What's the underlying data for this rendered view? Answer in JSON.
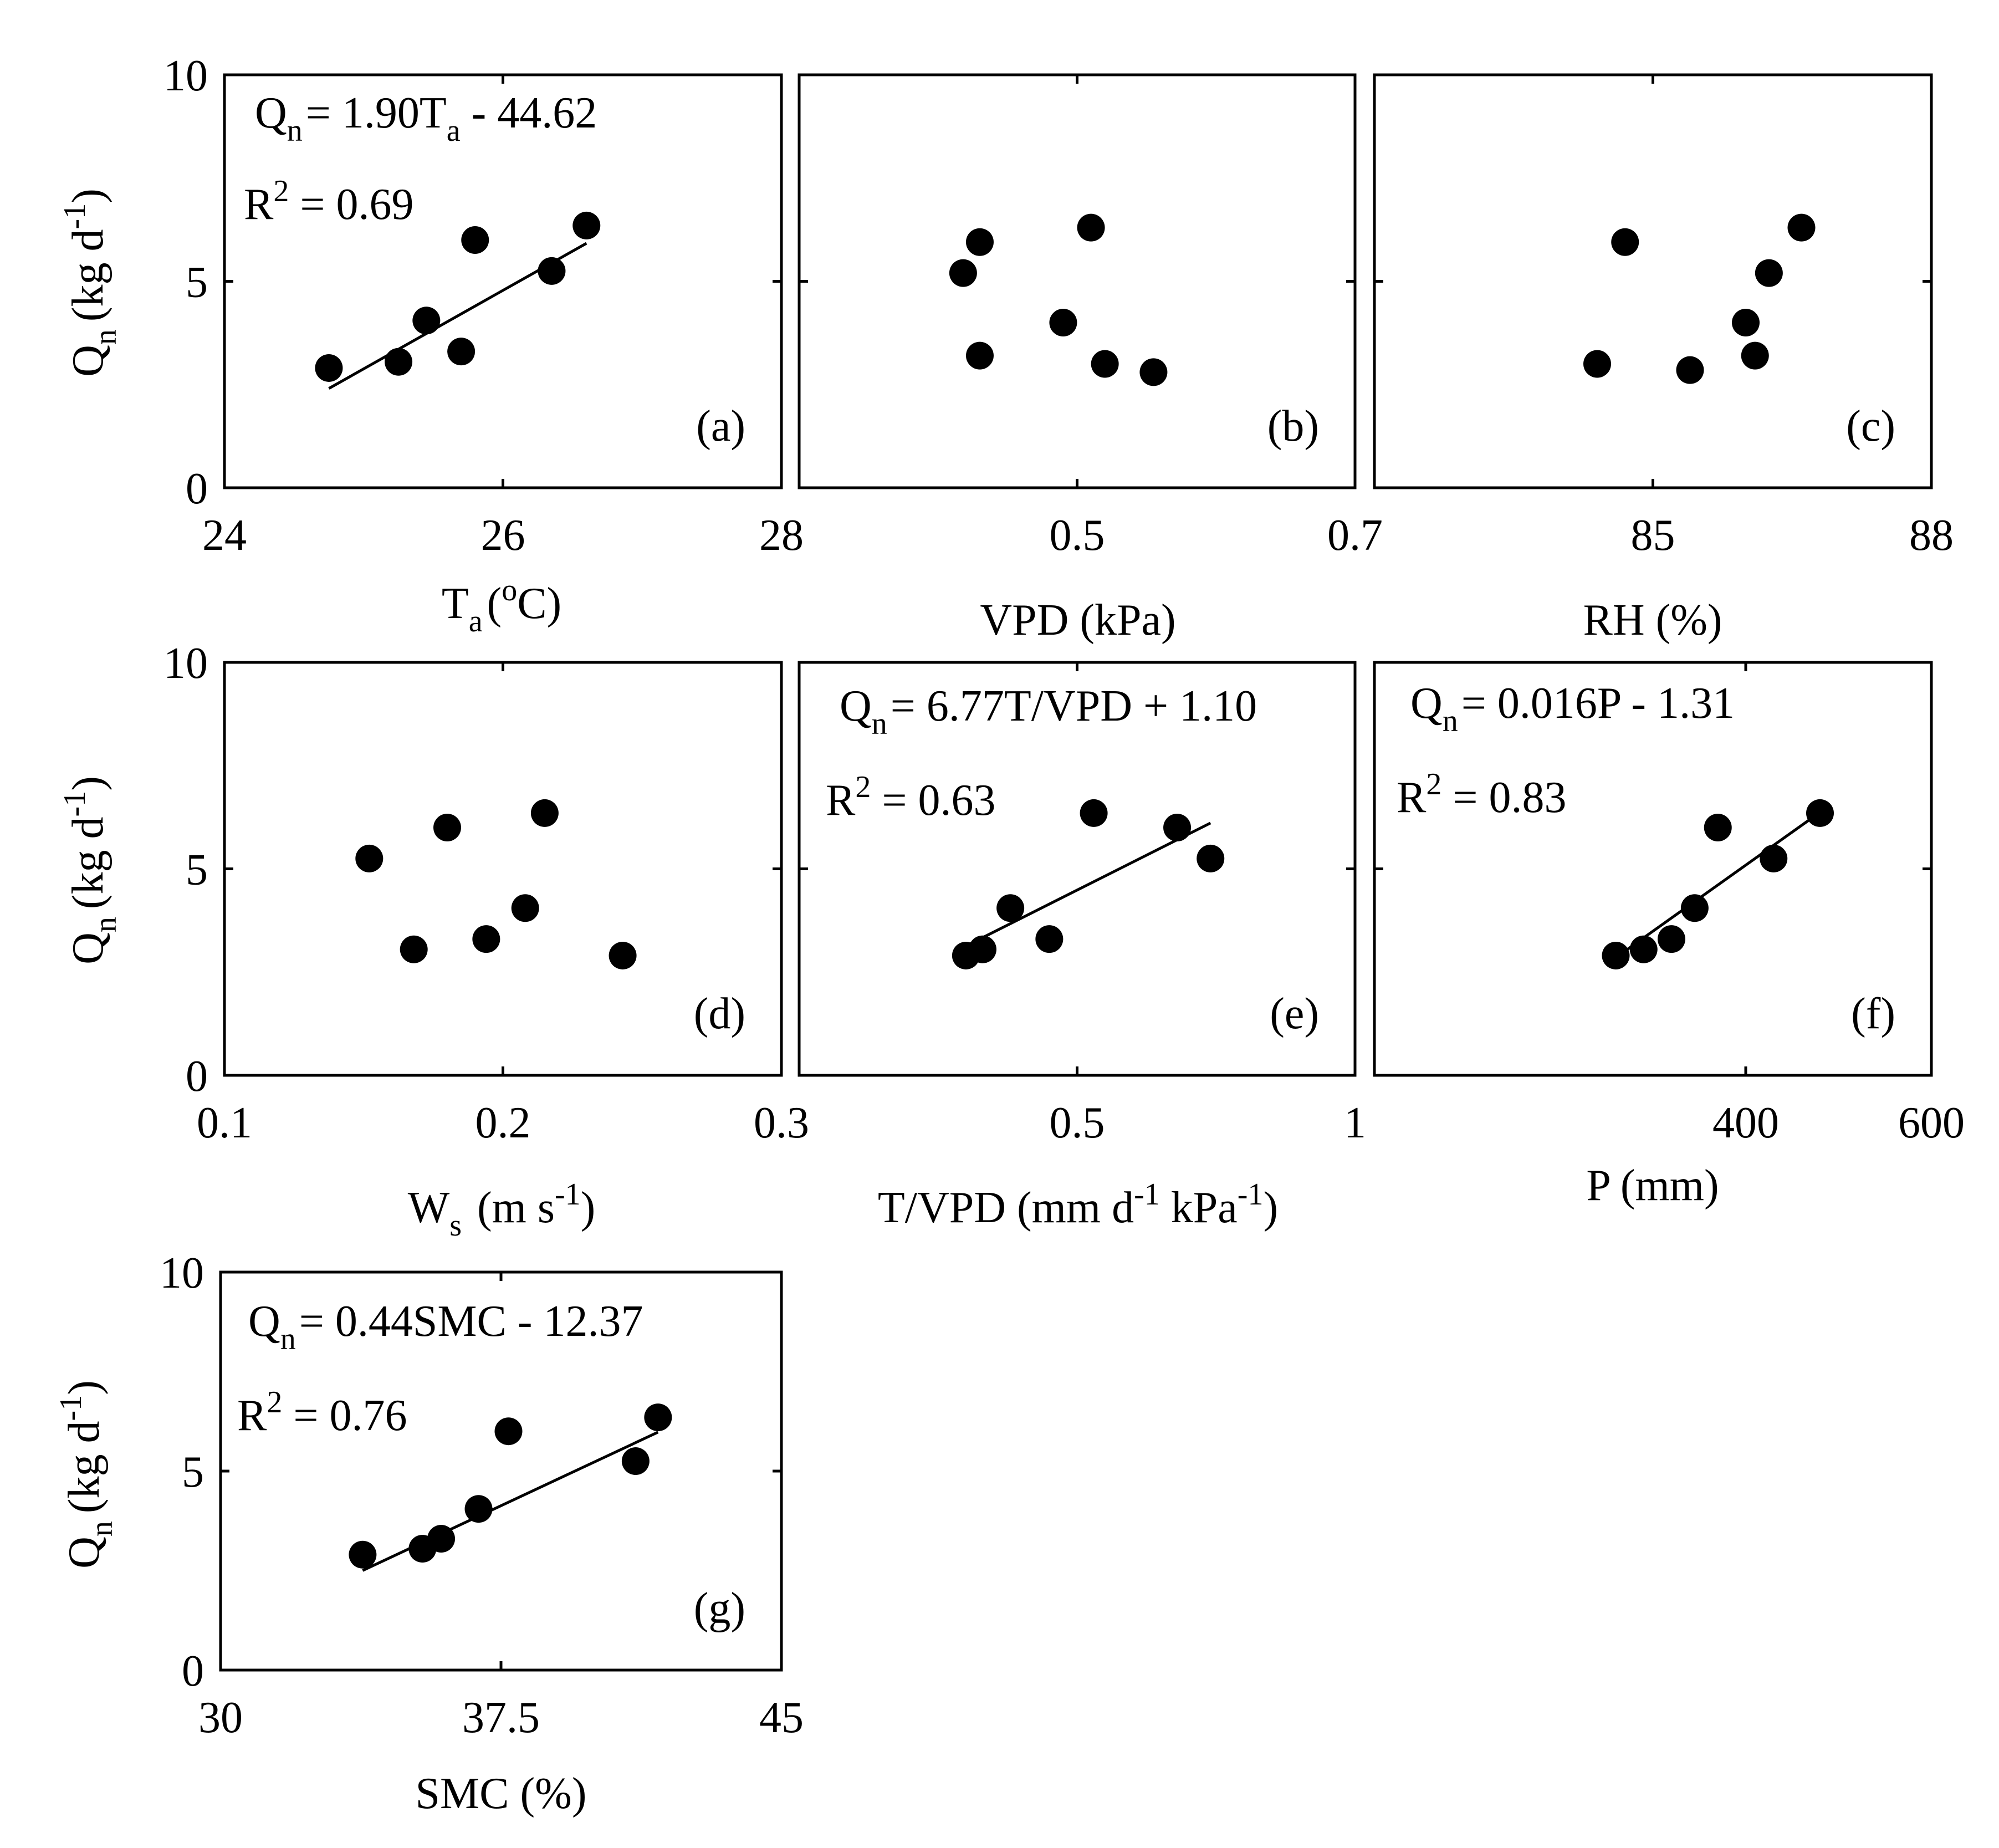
{
  "figure": {
    "background": "#ffffff",
    "ink": "#000000"
  },
  "chart_data": [
    {
      "type": "scatter",
      "panel_label": "(a)",
      "xlabel": "T",
      "xlabel_sub": "a",
      "xlabel_pre": "(",
      "xlabel_sup": "o",
      "xlabel_post": "C)",
      "ylabel": "Q",
      "ylabel_sub": "n",
      "ylabel_unit": "(kg d",
      "ylabel_sup": "-1",
      "ylabel_close": ")",
      "xlim": [
        24,
        28
      ],
      "xticks": [
        24,
        26,
        28
      ],
      "xtick_labels": [
        "24",
        "26",
        "28"
      ],
      "ylim": [
        0,
        10
      ],
      "yticks": [
        0,
        5,
        10
      ],
      "ytick_labels": [
        "0",
        "5",
        "10"
      ],
      "x": [
        24.75,
        25.25,
        25.45,
        25.7,
        25.8,
        26.35,
        26.6
      ],
      "y": [
        2.9,
        3.05,
        4.05,
        3.3,
        6.0,
        5.25,
        6.35
      ],
      "fit": {
        "slope": 1.9,
        "intercept": -44.62,
        "x_range": [
          24.75,
          26.6
        ]
      },
      "eq": {
        "lhs": "Q",
        "lhs_sub": "n",
        "rhs_a": "= 1.90T",
        "rhs_sub": "a",
        "rhs_b": " - 44.62"
      },
      "r2": {
        "base": "R",
        "sup": "2",
        "rest": " = 0.69"
      }
    },
    {
      "type": "scatter",
      "panel_label": "(b)",
      "xlabel": "VPD (kPa)",
      "xlim": [
        0.3,
        0.7
      ],
      "xticks": [
        0.5,
        0.7
      ],
      "xtick_labels": [
        "0.5",
        "0.7"
      ],
      "ylim": [
        0,
        10
      ],
      "yticks": [
        0,
        5,
        10
      ],
      "ytick_labels": [],
      "x": [
        0.418,
        0.43,
        0.43,
        0.49,
        0.51,
        0.52,
        0.555
      ],
      "y": [
        5.2,
        5.95,
        3.2,
        4.0,
        6.3,
        3.0,
        2.8
      ]
    },
    {
      "type": "scatter",
      "panel_label": "(c)",
      "xlabel": "RH (%)",
      "xlim": [
        82,
        88
      ],
      "xticks": [
        85,
        88
      ],
      "xtick_labels": [
        "85",
        "88"
      ],
      "ylim": [
        0,
        10
      ],
      "yticks": [
        0,
        5,
        10
      ],
      "ytick_labels": [],
      "x": [
        84.4,
        84.7,
        85.4,
        86.0,
        86.1,
        86.25,
        86.6
      ],
      "y": [
        3.0,
        5.95,
        2.85,
        4.0,
        3.2,
        5.2,
        6.3
      ]
    },
    {
      "type": "scatter",
      "panel_label": "(d)",
      "xlabel": "W",
      "xlabel_sub": "s",
      "xlabel_pre": " (m s",
      "xlabel_sup": "-1",
      "xlabel_post": ")",
      "ylabel": "Q",
      "ylabel_sub": "n",
      "ylabel_unit": "(kg d",
      "ylabel_sup": "-1",
      "ylabel_close": ")",
      "xlim": [
        0.1,
        0.3
      ],
      "xticks": [
        0.1,
        0.2,
        0.3
      ],
      "xtick_labels": [
        "0.1",
        "0.2",
        "0.3"
      ],
      "ylim": [
        0,
        10
      ],
      "yticks": [
        0,
        5,
        10
      ],
      "ytick_labels": [
        "0",
        "5",
        "10"
      ],
      "x": [
        0.152,
        0.168,
        0.18,
        0.194,
        0.208,
        0.215,
        0.243
      ],
      "y": [
        5.25,
        3.05,
        6.0,
        3.3,
        4.05,
        6.35,
        2.9
      ]
    },
    {
      "type": "scatter",
      "panel_label": "(e)",
      "xlabel": "T/VPD (mm d",
      "xlabel_sup": "-1",
      "xlabel_mid": " kPa",
      "xlabel_sup2": "-1",
      "xlabel_post": ")",
      "xlim": [
        0,
        1
      ],
      "xticks": [
        0.5,
        1
      ],
      "xtick_labels": [
        "0.5",
        "1"
      ],
      "ylim": [
        0,
        10
      ],
      "yticks": [
        0,
        5,
        10
      ],
      "ytick_labels": [],
      "x": [
        0.3,
        0.33,
        0.38,
        0.45,
        0.53,
        0.68,
        0.74
      ],
      "y": [
        2.9,
        3.05,
        4.05,
        3.3,
        6.35,
        6.0,
        5.25
      ],
      "fit": {
        "slope": 6.77,
        "intercept": 1.1,
        "x_range": [
          0.3,
          0.74
        ]
      },
      "eq": {
        "lhs": "Q",
        "lhs_sub": "n",
        "rhs_a": "= 6.77T/VPD + 1.10"
      },
      "r2": {
        "base": "R",
        "sup": "2",
        "rest": " = 0.63"
      }
    },
    {
      "type": "scatter",
      "panel_label": "(f)",
      "xlabel": "P (mm)",
      "xlim": [
        0,
        600
      ],
      "xticks": [
        400,
        600
      ],
      "xtick_labels": [
        "400",
        "600"
      ],
      "ylim": [
        0,
        10
      ],
      "yticks": [
        0,
        5,
        10
      ],
      "ytick_labels": [],
      "x": [
        260,
        290,
        320,
        345,
        370,
        430,
        480
      ],
      "y": [
        2.9,
        3.05,
        3.3,
        4.05,
        6.0,
        5.25,
        6.35
      ],
      "fit": {
        "slope": 0.016,
        "intercept": -1.31,
        "x_range": [
          260,
          480
        ]
      },
      "eq": {
        "lhs": "Q",
        "lhs_sub": "n",
        "rhs_a": "= 0.016P - 1.31"
      },
      "r2": {
        "base": "R",
        "sup": "2",
        "rest": " = 0.83"
      }
    },
    {
      "type": "scatter",
      "panel_label": "(g)",
      "xlabel": "SMC (%)",
      "ylabel": "Q",
      "ylabel_sub": "n",
      "ylabel_unit": "(kg d",
      "ylabel_sup": "-1",
      "ylabel_close": ")",
      "xlim": [
        30,
        45
      ],
      "xticks": [
        30,
        37.5,
        45
      ],
      "xtick_labels": [
        "30",
        "37.5",
        "45"
      ],
      "ylim": [
        0,
        10
      ],
      "yticks": [
        0,
        5,
        10
      ],
      "ytick_labels": [
        "0",
        "5",
        "10"
      ],
      "x": [
        33.8,
        35.4,
        35.9,
        36.9,
        37.7,
        41.1,
        41.7
      ],
      "y": [
        2.9,
        3.05,
        3.3,
        4.05,
        6.0,
        5.25,
        6.35
      ],
      "fit": {
        "slope": 0.44,
        "intercept": -12.37,
        "x_range": [
          33.8,
          41.7
        ]
      },
      "eq": {
        "lhs": "Q",
        "lhs_sub": "n",
        "rhs_a": "= 0.44SMC - 12.37"
      },
      "r2": {
        "base": "R",
        "sup": "2",
        "rest": " = 0.76"
      }
    }
  ]
}
